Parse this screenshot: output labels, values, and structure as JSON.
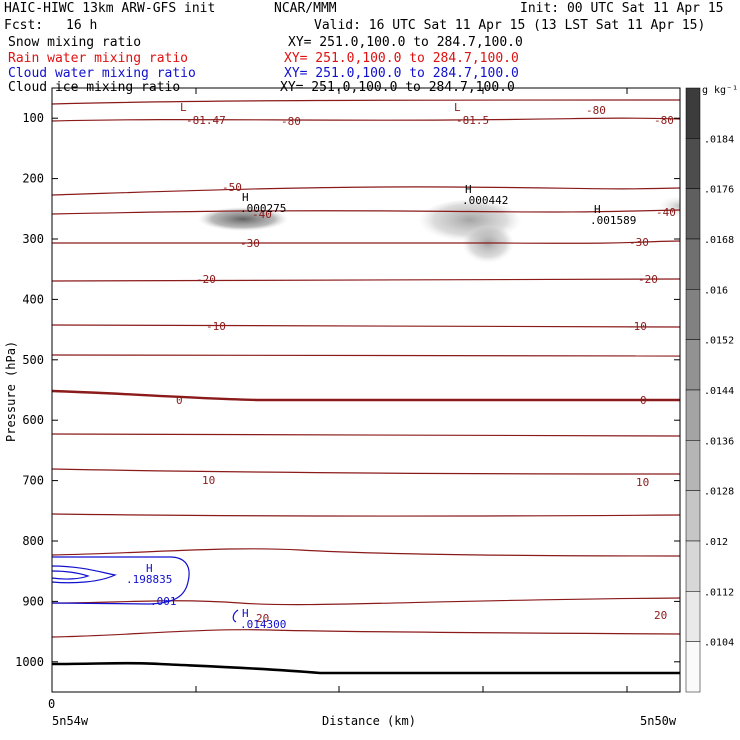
{
  "header": {
    "model": "HAIC-HIWC 13km ARW-GFS init",
    "org": "NCAR/MMM",
    "init": "Init: 00 UTC Sat 11 Apr 15",
    "fcst_label": "Fcst:",
    "fcst_value": "16 h",
    "valid": "Valid: 16 UTC Sat 11 Apr 15 (13 LST Sat 11 Apr 15)",
    "fields": [
      {
        "name": "Snow mixing ratio",
        "xy": "XY= 251.0,100.0 to 284.7,100.0",
        "color": "#000000"
      },
      {
        "name": "Rain water mixing ratio",
        "xy": "XY= 251.0,100.0 to 284.7,100.0",
        "color": "#e01010"
      },
      {
        "name": "Cloud water mixing ratio",
        "xy": "XY= 251.0,100.0 to 284.7,100.0",
        "color": "#1010d0"
      },
      {
        "name": "Cloud ice mixing ratio",
        "xy": "XY= 251.0,100.0 to 284.7,100.0",
        "color": "#000000"
      }
    ]
  },
  "chart_data": {
    "type": "contour",
    "xlabel": "Distance (km)",
    "ylabel": "Pressure (hPa)",
    "x_tick_zero": "0",
    "x_left_label": "5n54w",
    "x_right_label": "5n50w",
    "ylim": [
      1050,
      50
    ],
    "y_ticks": [
      100,
      200,
      300,
      400,
      500,
      600,
      700,
      800,
      900,
      1000
    ],
    "colorbar": {
      "unit": "g kg⁻¹",
      "labels": [
        ".0184",
        ".0176",
        ".0168",
        ".016",
        ".0152",
        ".0144",
        ".0136",
        ".0128",
        ".012",
        ".0112",
        ".0104"
      ]
    },
    "temperature_contour_labels": [
      {
        "text": "-81.47",
        "color": "#8b1a1a"
      },
      {
        "text": "-80",
        "color": "#8b1a1a"
      },
      {
        "text": "-81.5",
        "color": "#8b1a1a"
      },
      {
        "text": "-50",
        "color": "#8b1a1a"
      },
      {
        "text": "-40",
        "color": "#8b1a1a"
      },
      {
        "text": "-30",
        "color": "#8b1a1a"
      },
      {
        "text": "-20",
        "color": "#8b1a1a"
      },
      {
        "text": "-10",
        "color": "#8b1a1a"
      },
      {
        "text": "0",
        "color": "#8b1a1a"
      },
      {
        "text": "10",
        "color": "#8b1a1a"
      },
      {
        "text": "20",
        "color": "#8b1a1a"
      }
    ],
    "extrema_labels": [
      {
        "mark": "L",
        "value": "",
        "color": "#8b1a1a"
      },
      {
        "mark": "H",
        "value": ".000275",
        "color": "#000000"
      },
      {
        "mark": "H",
        "value": ".000442",
        "color": "#000000"
      },
      {
        "mark": "H",
        "value": ".001589",
        "color": "#000000"
      },
      {
        "mark": "H",
        "value": ".198835",
        "color": "#1010d0"
      },
      {
        "mark": "H",
        "value": ".014300",
        "color": "#1010d0"
      }
    ],
    "cloud_water_contour_labels": [
      ".001"
    ]
  }
}
